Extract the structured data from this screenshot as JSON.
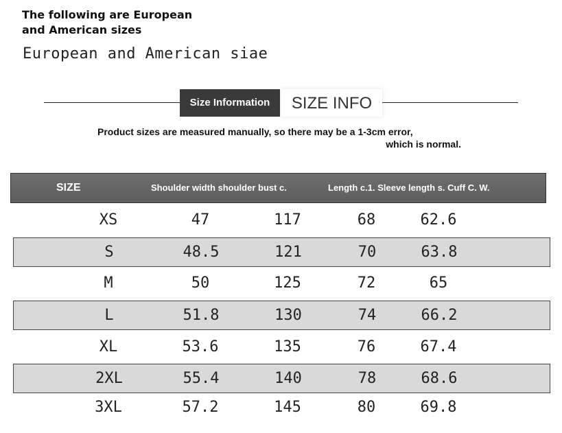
{
  "heading": {
    "line1": "The following are European",
    "line2": "and American sizes"
  },
  "subtitle": "European and American siae",
  "size_info": {
    "label_dark": "Size Information",
    "label_light": "SIZE INFO"
  },
  "note": {
    "line1": "Product sizes are measured manually, so there may be a 1-3cm error,",
    "line2": "which is normal."
  },
  "table": {
    "headers": {
      "size": "SIZE",
      "shoulder_bust": "Shoulder width shoulder bust c.",
      "rest": "Length c.1. Sleeve length s. Cuff C. W."
    },
    "rows": [
      [
        "XS",
        "47",
        "117",
        "68",
        "62.6"
      ],
      [
        "S",
        "48.5",
        "121",
        "70",
        "63.8"
      ],
      [
        "M",
        "50",
        "125",
        "72",
        "65"
      ],
      [
        "L",
        "51.8",
        "130",
        "74",
        "66.2"
      ],
      [
        "XL",
        "53.6",
        "135",
        "76",
        "67.4"
      ],
      [
        "2XL",
        "55.4",
        "140",
        "78",
        "68.6"
      ],
      [
        "3XL",
        "57.2",
        "145",
        "80",
        "69.8"
      ]
    ]
  }
}
